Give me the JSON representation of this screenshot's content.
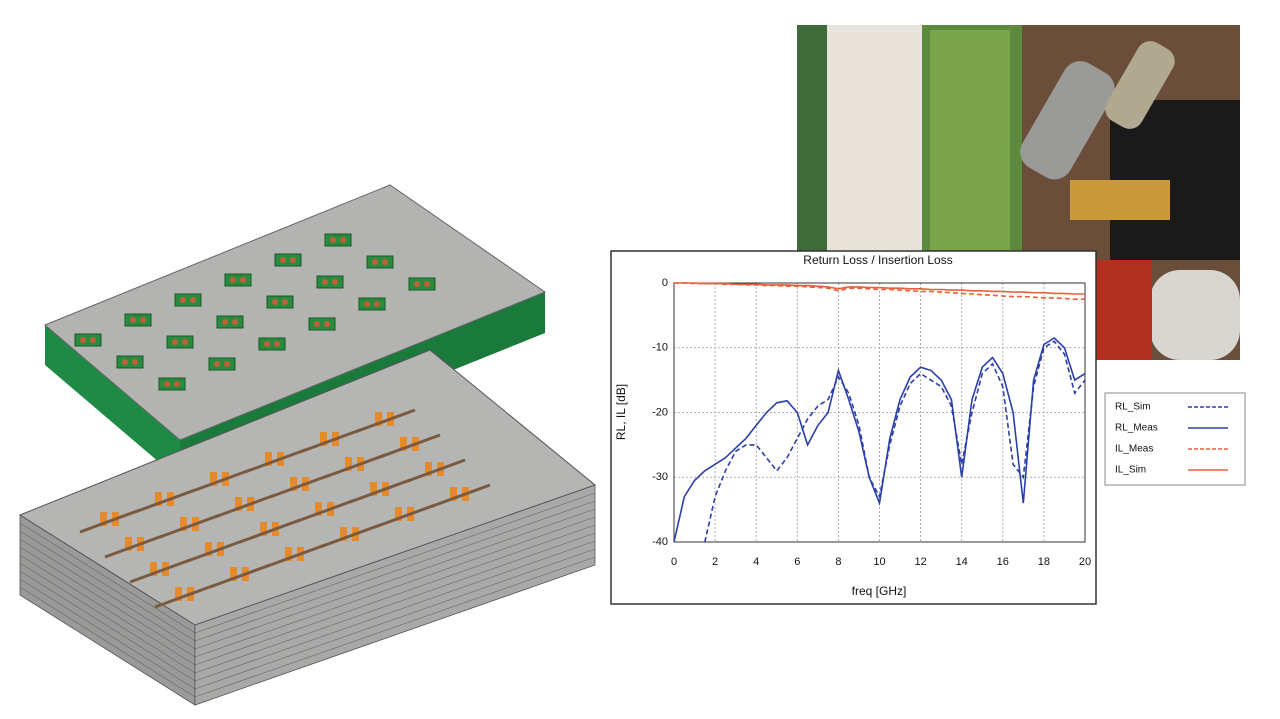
{
  "chart_data": {
    "type": "line",
    "title": "Return Loss / Insertion Loss",
    "x_label": "freq [GHz]",
    "y_label": "RL, IL [dB]",
    "x": [
      0,
      0.5,
      1,
      1.5,
      2,
      2.5,
      3,
      3.5,
      4,
      4.5,
      5,
      5.5,
      6,
      6.5,
      7,
      7.5,
      8,
      8.5,
      9,
      9.5,
      10,
      10.5,
      11,
      11.5,
      12,
      12.5,
      13,
      13.5,
      14,
      14.5,
      15,
      15.5,
      16,
      16.5,
      17,
      17.5,
      18,
      18.5,
      19,
      19.5,
      20
    ],
    "xlim": [
      0,
      20
    ],
    "xticks": [
      0,
      2,
      4,
      6,
      8,
      10,
      12,
      14,
      16,
      18,
      20
    ],
    "ylim": [
      -40,
      0
    ],
    "yticks": [
      0,
      -10,
      -20,
      -30,
      -40
    ],
    "grid": true,
    "legend": "right",
    "series": [
      {
        "name": "RL_Sim",
        "color": "#2b3faa",
        "line_style": "dashed",
        "values": [
          null,
          null,
          null,
          -40,
          -33,
          -29,
          -26,
          -25,
          -25,
          -27,
          -29,
          -27,
          -24,
          -21,
          -19,
          -18,
          -14.5,
          -17,
          -22,
          -30,
          -33,
          -25,
          -19,
          -15.5,
          -14,
          -15,
          -16,
          -19,
          -28,
          -20,
          -14,
          -12.5,
          -16,
          -28,
          -30,
          -16,
          -10,
          -9,
          -11,
          -17,
          -15
        ]
      },
      {
        "name": "RL_Meas",
        "color": "#2b3faa",
        "line_style": "solid",
        "values": [
          -40,
          -33,
          -30.5,
          -29,
          -28,
          -27,
          -25.5,
          -24,
          -22,
          -20,
          -18.5,
          -18.2,
          -20,
          -25,
          -22,
          -20,
          -13.5,
          -18,
          -23,
          -30,
          -34,
          -24,
          -18,
          -14.5,
          -13,
          -13.5,
          -15,
          -18,
          -30,
          -18,
          -13,
          -11.5,
          -14,
          -20,
          -34,
          -15,
          -9.5,
          -8.5,
          -10,
          -15,
          -14
        ]
      },
      {
        "name": "IL_Meas",
        "color": "#e8603c",
        "line_style": "dashed",
        "values": [
          0,
          0,
          -0.1,
          -0.1,
          -0.1,
          -0.2,
          -0.2,
          -0.3,
          -0.3,
          -0.4,
          -0.4,
          -0.5,
          -0.5,
          -0.6,
          -0.7,
          -0.8,
          -1.2,
          -0.8,
          -0.8,
          -0.9,
          -1,
          -1,
          -1.1,
          -1.2,
          -1.3,
          -1.3,
          -1.4,
          -1.5,
          -1.6,
          -1.7,
          -1.8,
          -1.9,
          -2,
          -2.1,
          -2.1,
          -2.2,
          -2.3,
          -2.3,
          -2.4,
          -2.5,
          -2.5
        ]
      },
      {
        "name": "IL_Sim",
        "color": "#e8603c",
        "line_style": "solid",
        "values": [
          0,
          0,
          0,
          -0.1,
          -0.1,
          -0.1,
          -0.2,
          -0.2,
          -0.2,
          -0.3,
          -0.3,
          -0.3,
          -0.4,
          -0.4,
          -0.5,
          -0.6,
          -0.9,
          -0.6,
          -0.6,
          -0.7,
          -0.7,
          -0.8,
          -0.8,
          -0.9,
          -0.9,
          -1,
          -1,
          -1.1,
          -1.1,
          -1.2,
          -1.2,
          -1.3,
          -1.3,
          -1.4,
          -1.4,
          -1.5,
          -1.5,
          -1.6,
          -1.6,
          -1.7,
          -1.7
        ]
      }
    ]
  }
}
